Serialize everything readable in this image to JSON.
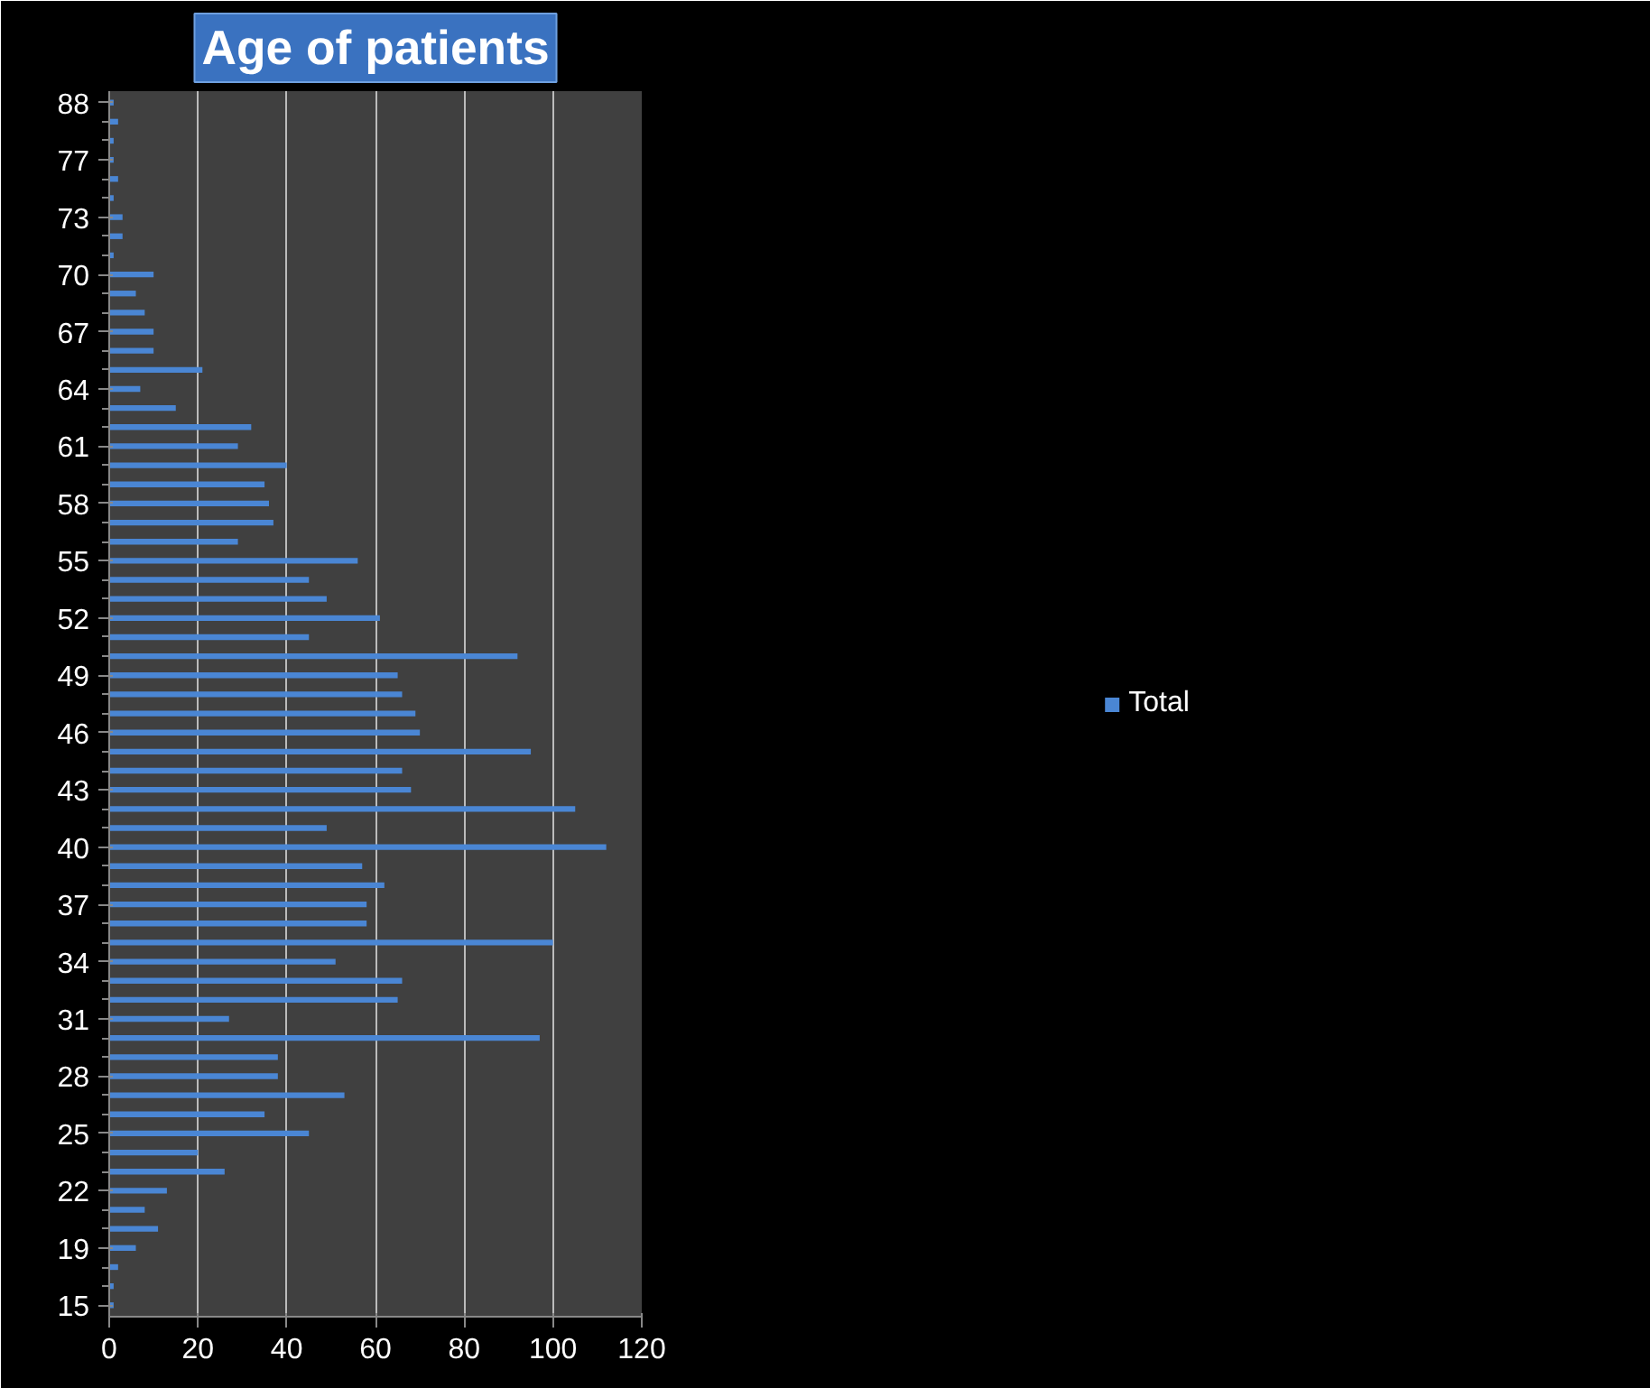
{
  "chart_data": {
    "type": "bar",
    "orientation": "horizontal",
    "title": "Age of patients",
    "categories": [
      "88",
      null,
      null,
      "77",
      null,
      null,
      "73",
      null,
      null,
      "70",
      null,
      null,
      "67",
      null,
      null,
      "64",
      null,
      null,
      "61",
      null,
      null,
      "58",
      null,
      null,
      "55",
      null,
      null,
      "52",
      null,
      null,
      "49",
      null,
      null,
      "46",
      null,
      null,
      "43",
      null,
      null,
      "40",
      null,
      null,
      "37",
      null,
      null,
      "34",
      null,
      null,
      "31",
      null,
      null,
      "28",
      null,
      null,
      "25",
      null,
      null,
      "22",
      null,
      null,
      "19",
      null,
      null,
      "15"
    ],
    "series": [
      {
        "name": "Total",
        "color": "#4a86d4",
        "values": [
          1,
          2,
          1,
          1,
          2,
          1,
          3,
          3,
          1,
          10,
          6,
          8,
          10,
          10,
          21,
          7,
          15,
          32,
          29,
          40,
          35,
          36,
          37,
          29,
          56,
          45,
          49,
          61,
          45,
          92,
          65,
          66,
          69,
          70,
          95,
          66,
          68,
          105,
          49,
          112,
          57,
          62,
          58,
          58,
          100,
          51,
          66,
          65,
          27,
          97,
          38,
          38,
          53,
          35,
          45,
          20,
          26,
          13,
          8,
          11,
          6,
          2,
          1,
          1
        ]
      }
    ],
    "xlim": [
      0,
      120
    ],
    "xticks": [
      0,
      20,
      40,
      60,
      80,
      100,
      120
    ],
    "grid": "x",
    "legend": "right"
  }
}
